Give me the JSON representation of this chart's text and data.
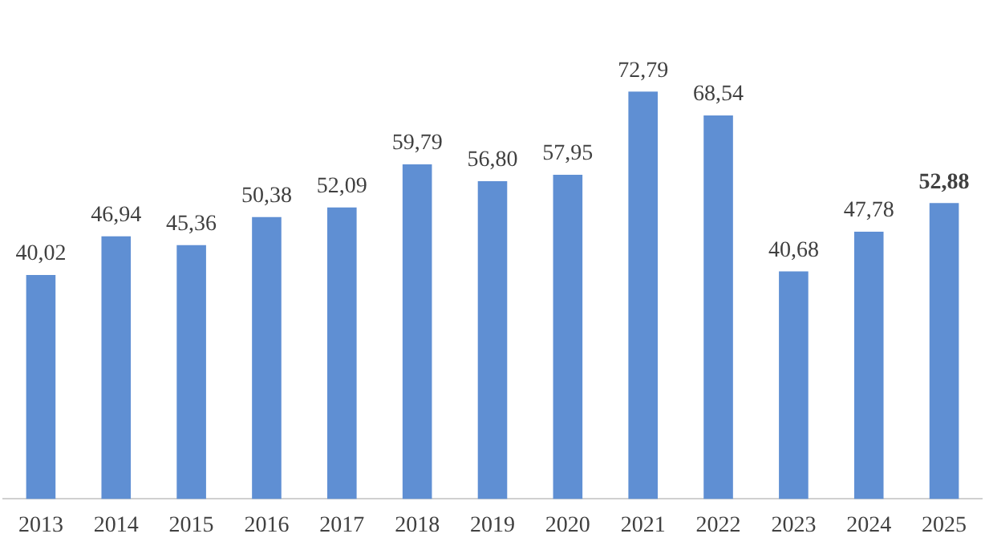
{
  "chart_data": {
    "type": "bar",
    "categories": [
      "2013",
      "2014",
      "2015",
      "2016",
      "2017",
      "2018",
      "2019",
      "2020",
      "2021",
      "2022",
      "2023",
      "2024",
      "2025"
    ],
    "values": [
      40.02,
      46.94,
      45.36,
      50.38,
      52.09,
      59.79,
      56.8,
      57.95,
      72.79,
      68.54,
      40.68,
      47.78,
      52.88
    ],
    "value_labels": [
      "40,02",
      "46,94",
      "45,36",
      "50,38",
      "52,09",
      "59,79",
      "56,80",
      "57,95",
      "72,79",
      "68,54",
      "40,68",
      "47,78",
      "52,88"
    ],
    "color": "#5f8fd3",
    "grid": false,
    "legend": false,
    "tick_labels": "x"
  }
}
